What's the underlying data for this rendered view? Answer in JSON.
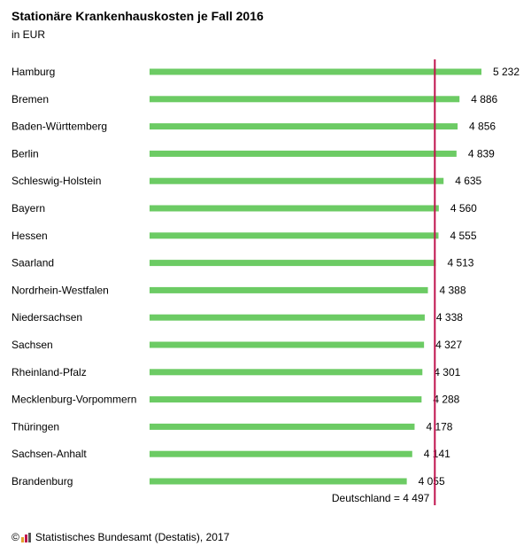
{
  "title": "Stationäre Krankenhauskosten je Fall 2016",
  "subtitle": "in EUR",
  "footer": {
    "copyright": "©",
    "source": "Statistisches Bundesamt (Destatis), 2017"
  },
  "colors": {
    "bar": "#6ccb64",
    "reference_line": "#c0134e"
  },
  "chart_data": {
    "type": "bar",
    "orientation": "horizontal",
    "categories": [
      "Hamburg",
      "Bremen",
      "Baden-Württemberg",
      "Berlin",
      "Schleswig-Holstein",
      "Bayern",
      "Hessen",
      "Saarland",
      "Nordrhein-Westfalen",
      "Niedersachsen",
      "Sachsen",
      "Rheinland-Pfalz",
      "Mecklenburg-Vorpommern",
      "Thüringen",
      "Sachsen-Anhalt",
      "Brandenburg"
    ],
    "values": [
      5232,
      4886,
      4856,
      4839,
      4635,
      4560,
      4555,
      4513,
      4388,
      4338,
      4327,
      4301,
      4288,
      4178,
      4141,
      4055
    ],
    "value_labels": [
      "5 232",
      "4 886",
      "4 856",
      "4 839",
      "4 635",
      "4 560",
      "4 555",
      "4 513",
      "4 388",
      "4 338",
      "4 327",
      "4 301",
      "4 288",
      "4 178",
      "4 141",
      "4 055"
    ],
    "reference": {
      "value": 4497,
      "label": "Deutschland = 4 497"
    },
    "grid": false,
    "legend": "none"
  }
}
